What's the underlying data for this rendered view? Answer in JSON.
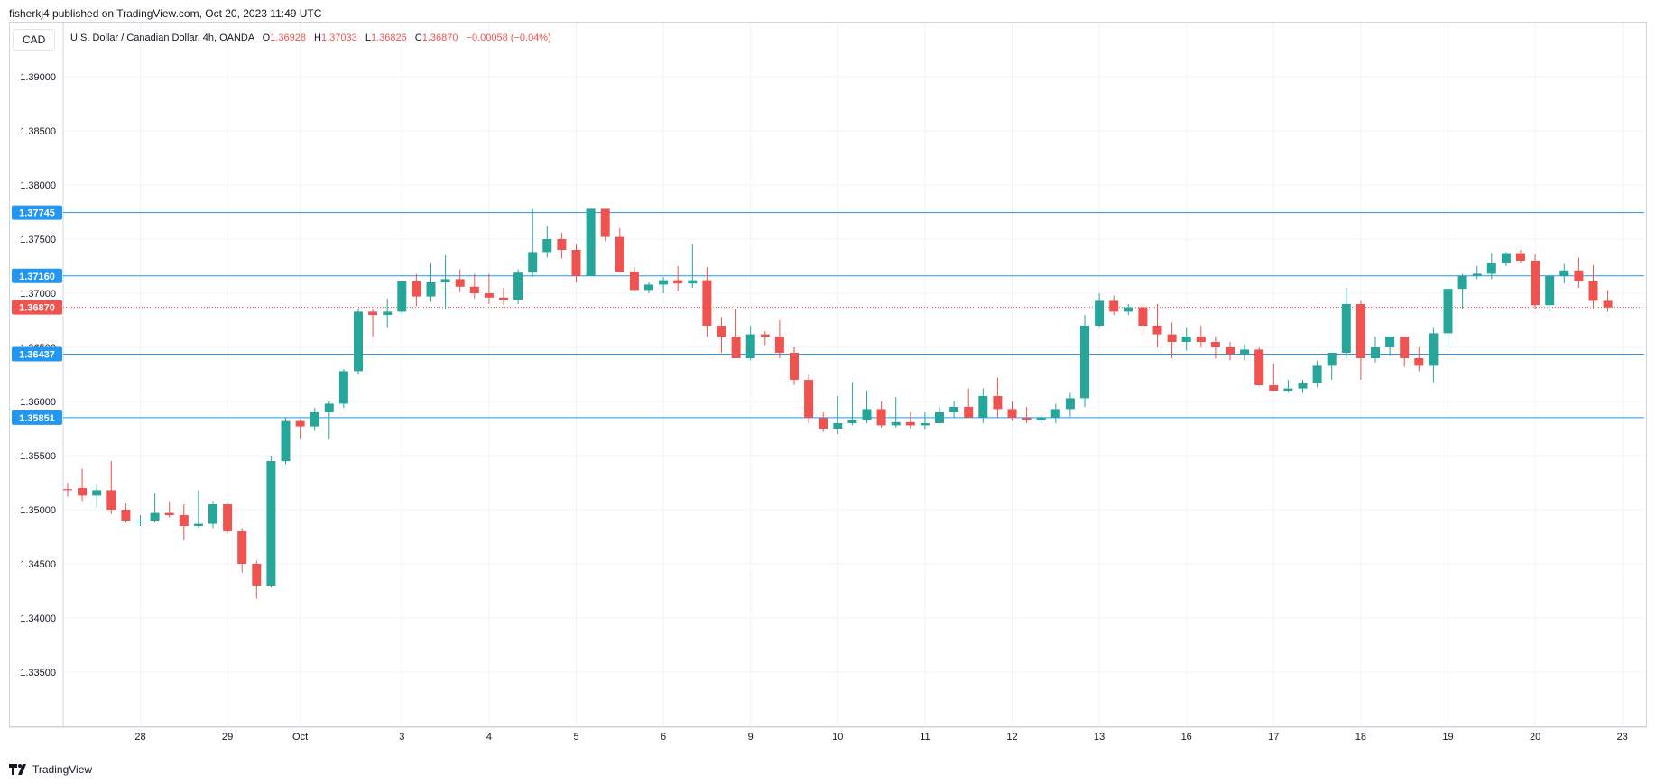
{
  "header": {
    "published": "fisherkj4 published on TradingView.com, Oct 20, 2023 11:49 UTC"
  },
  "toolbar": {
    "symbol_button": "CAD"
  },
  "legend": {
    "name": "U.S. Dollar / Canadian Dollar, 4h, OANDA",
    "o_label": "O",
    "o": "1.36928",
    "h_label": "H",
    "h": "1.37033",
    "l_label": "L",
    "l": "1.36826",
    "c_label": "C",
    "c": "1.36870",
    "change": "−0.00058 (−0.04%)"
  },
  "footer": {
    "brand": "TradingView"
  },
  "colors": {
    "up": "#26a69a",
    "down": "#ef5350",
    "hline": "#2196f3",
    "grid": "#f0f3fa",
    "text": "#131722"
  },
  "chart_data": {
    "type": "candlestick",
    "y_axis": {
      "range": [
        1.33,
        1.4
      ],
      "ticks": [
        "1.39000",
        "1.38500",
        "1.38000",
        "1.37500",
        "1.37000",
        "1.36500",
        "1.36000",
        "1.35500",
        "1.35000",
        "1.34500",
        "1.34000",
        "1.33500"
      ],
      "tick_values": [
        1.39,
        1.385,
        1.38,
        1.375,
        1.37,
        1.365,
        1.36,
        1.355,
        1.35,
        1.345,
        1.34,
        1.335
      ]
    },
    "x_axis": {
      "labels": [
        "28",
        "29",
        "Oct",
        "3",
        "4",
        "5",
        "6",
        "9",
        "10",
        "11",
        "12",
        "13",
        "16",
        "17",
        "18",
        "19",
        "20",
        "23"
      ],
      "label_index": [
        5,
        11,
        16,
        23,
        29,
        35,
        41,
        47,
        53,
        59,
        65,
        71,
        77,
        83,
        89,
        95,
        101,
        107
      ]
    },
    "horizontal_levels": [
      {
        "label": "1.37745",
        "value": 1.37745
      },
      {
        "label": "1.37160",
        "value": 1.3716
      },
      {
        "label": "1.36437",
        "value": 1.36437
      },
      {
        "label": "1.35851",
        "value": 1.35851
      }
    ],
    "current_price": {
      "label": "1.36870",
      "value": 1.3687
    },
    "candles": [
      [
        1.3519,
        1.3525,
        1.3512,
        1.3518
      ],
      [
        1.352,
        1.3538,
        1.3508,
        1.3513
      ],
      [
        1.3513,
        1.3523,
        1.3502,
        1.3518
      ],
      [
        1.3518,
        1.3545,
        1.3496,
        1.35
      ],
      [
        1.35,
        1.3506,
        1.3488,
        1.349
      ],
      [
        1.349,
        1.3495,
        1.3485,
        1.349
      ],
      [
        1.349,
        1.3515,
        1.3488,
        1.3497
      ],
      [
        1.3497,
        1.3508,
        1.3493,
        1.3495
      ],
      [
        1.3495,
        1.3505,
        1.3472,
        1.3485
      ],
      [
        1.3485,
        1.3518,
        1.3483,
        1.3487
      ],
      [
        1.3487,
        1.3508,
        1.3483,
        1.3505
      ],
      [
        1.3505,
        1.3506,
        1.3478,
        1.348
      ],
      [
        1.348,
        1.3483,
        1.3442,
        1.345
      ],
      [
        1.345,
        1.3453,
        1.3418,
        1.343
      ],
      [
        1.343,
        1.355,
        1.3428,
        1.3545
      ],
      [
        1.3545,
        1.3585,
        1.3542,
        1.3582
      ],
      [
        1.3582,
        1.3583,
        1.3565,
        1.3577
      ],
      [
        1.3577,
        1.3594,
        1.3573,
        1.359
      ],
      [
        1.359,
        1.36,
        1.3565,
        1.3598
      ],
      [
        1.3598,
        1.363,
        1.3594,
        1.3628
      ],
      [
        1.3628,
        1.3686,
        1.3625,
        1.3683
      ],
      [
        1.3683,
        1.3685,
        1.366,
        1.368
      ],
      [
        1.368,
        1.3695,
        1.3668,
        1.3683
      ],
      [
        1.3683,
        1.3712,
        1.368,
        1.3711
      ],
      [
        1.3711,
        1.3718,
        1.3688,
        1.3697
      ],
      [
        1.3697,
        1.3728,
        1.3692,
        1.371
      ],
      [
        1.371,
        1.3735,
        1.3685,
        1.3713
      ],
      [
        1.3713,
        1.3722,
        1.3701,
        1.3706
      ],
      [
        1.3706,
        1.3718,
        1.3695,
        1.37
      ],
      [
        1.37,
        1.3718,
        1.369,
        1.3696
      ],
      [
        1.3696,
        1.3705,
        1.3689,
        1.3694
      ],
      [
        1.3694,
        1.3722,
        1.369,
        1.3719
      ],
      [
        1.3719,
        1.3778,
        1.3715,
        1.3738
      ],
      [
        1.3738,
        1.3762,
        1.3733,
        1.375
      ],
      [
        1.375,
        1.3756,
        1.3732,
        1.374
      ],
      [
        1.374,
        1.3745,
        1.371,
        1.3716
      ],
      [
        1.3716,
        1.3778,
        1.3716,
        1.3778
      ],
      [
        1.3778,
        1.3778,
        1.3748,
        1.3752
      ],
      [
        1.3752,
        1.376,
        1.3719,
        1.372
      ],
      [
        1.372,
        1.3724,
        1.3702,
        1.3703
      ],
      [
        1.3703,
        1.371,
        1.37,
        1.3708
      ],
      [
        1.3708,
        1.3715,
        1.37,
        1.3712
      ],
      [
        1.3712,
        1.3725,
        1.3702,
        1.3709
      ],
      [
        1.3709,
        1.3745,
        1.3705,
        1.3712
      ],
      [
        1.3712,
        1.3724,
        1.366,
        1.367
      ],
      [
        1.367,
        1.3678,
        1.3645,
        1.366
      ],
      [
        1.366,
        1.3685,
        1.3642,
        1.364
      ],
      [
        1.364,
        1.367,
        1.3638,
        1.3662
      ],
      [
        1.3662,
        1.3665,
        1.3652,
        1.366
      ],
      [
        1.366,
        1.3675,
        1.364,
        1.3645
      ],
      [
        1.3645,
        1.365,
        1.3615,
        1.362
      ],
      [
        1.362,
        1.3625,
        1.358,
        1.3585
      ],
      [
        1.3585,
        1.359,
        1.3572,
        1.3575
      ],
      [
        1.3575,
        1.3605,
        1.357,
        1.358
      ],
      [
        1.358,
        1.3618,
        1.3578,
        1.3583
      ],
      [
        1.3583,
        1.361,
        1.358,
        1.3593
      ],
      [
        1.3593,
        1.36,
        1.3576,
        1.3578
      ],
      [
        1.3578,
        1.3604,
        1.3576,
        1.3581
      ],
      [
        1.3581,
        1.359,
        1.3575,
        1.3578
      ],
      [
        1.3578,
        1.359,
        1.3574,
        1.358
      ],
      [
        1.358,
        1.3595,
        1.358,
        1.359
      ],
      [
        1.359,
        1.36,
        1.3585,
        1.3595
      ],
      [
        1.3595,
        1.3612,
        1.3588,
        1.3585
      ],
      [
        1.3585,
        1.3612,
        1.358,
        1.3605
      ],
      [
        1.3605,
        1.3622,
        1.3585,
        1.3593
      ],
      [
        1.3593,
        1.36,
        1.3582,
        1.3585
      ],
      [
        1.3585,
        1.3595,
        1.358,
        1.3583
      ],
      [
        1.3583,
        1.3588,
        1.358,
        1.3585
      ],
      [
        1.3585,
        1.3598,
        1.358,
        1.3593
      ],
      [
        1.3593,
        1.3608,
        1.3586,
        1.3603
      ],
      [
        1.3603,
        1.368,
        1.3595,
        1.367
      ],
      [
        1.367,
        1.37,
        1.3668,
        1.3693
      ],
      [
        1.3693,
        1.3698,
        1.368,
        1.3683
      ],
      [
        1.3683,
        1.369,
        1.368,
        1.3687
      ],
      [
        1.3687,
        1.369,
        1.3662,
        1.367
      ],
      [
        1.367,
        1.369,
        1.365,
        1.3662
      ],
      [
        1.3662,
        1.3673,
        1.364,
        1.3655
      ],
      [
        1.3655,
        1.3668,
        1.3647,
        1.366
      ],
      [
        1.366,
        1.367,
        1.365,
        1.3655
      ],
      [
        1.3655,
        1.366,
        1.364,
        1.365
      ],
      [
        1.365,
        1.3655,
        1.3638,
        1.3644
      ],
      [
        1.3644,
        1.3653,
        1.3638,
        1.3648
      ],
      [
        1.3648,
        1.365,
        1.3615,
        1.3615
      ],
      [
        1.3615,
        1.3635,
        1.361,
        1.361
      ],
      [
        1.361,
        1.362,
        1.3608,
        1.3612
      ],
      [
        1.3612,
        1.362,
        1.3608,
        1.3617
      ],
      [
        1.3617,
        1.3638,
        1.3613,
        1.3633
      ],
      [
        1.3633,
        1.3645,
        1.362,
        1.3645
      ],
      [
        1.3645,
        1.3705,
        1.364,
        1.369
      ],
      [
        1.369,
        1.3693,
        1.362,
        1.364
      ],
      [
        1.364,
        1.366,
        1.3636,
        1.365
      ],
      [
        1.365,
        1.366,
        1.3642,
        1.366
      ],
      [
        1.366,
        1.366,
        1.3632,
        1.364
      ],
      [
        1.364,
        1.365,
        1.3628,
        1.3633
      ],
      [
        1.3633,
        1.3668,
        1.3618,
        1.3663
      ],
      [
        1.3663,
        1.3712,
        1.365,
        1.3704
      ],
      [
        1.3704,
        1.3718,
        1.3685,
        1.3716
      ],
      [
        1.3716,
        1.3725,
        1.3713,
        1.3718
      ],
      [
        1.3718,
        1.3737,
        1.3713,
        1.3728
      ],
      [
        1.3728,
        1.3738,
        1.3725,
        1.3737
      ],
      [
        1.3737,
        1.374,
        1.3728,
        1.373
      ],
      [
        1.373,
        1.3736,
        1.3685,
        1.3689
      ],
      [
        1.3689,
        1.3717,
        1.3683,
        1.3716
      ],
      [
        1.3716,
        1.3727,
        1.3709,
        1.3721
      ],
      [
        1.3721,
        1.3733,
        1.3705,
        1.3711
      ],
      [
        1.3711,
        1.3726,
        1.3686,
        1.3693
      ],
      [
        1.3693,
        1.3703,
        1.3683,
        1.3687
      ]
    ]
  }
}
